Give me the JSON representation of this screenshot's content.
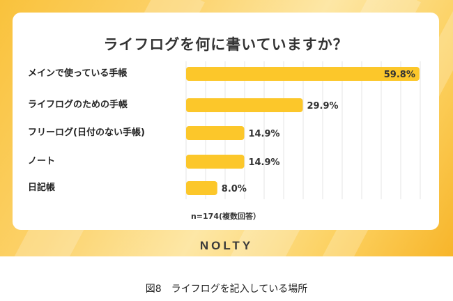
{
  "logo": "NOLTY",
  "caption": "図8　ライフログを記入している場所",
  "colors": {
    "bar": "#fcc72a",
    "label": "#333333"
  },
  "chart_data": {
    "type": "bar",
    "orientation": "horizontal",
    "title": "ライフログを何に書いていますか？",
    "categories": [
      "メインで使っている手帳",
      "ライフログのための手帳",
      "フリーログ(日付のない手帳)",
      "ノート",
      "日記帳"
    ],
    "values": [
      59.8,
      29.9,
      14.9,
      14.9,
      8.0
    ],
    "value_labels": [
      "59.8%",
      "29.9%",
      "14.9%",
      "14.9%",
      "8.0%"
    ],
    "xlim": [
      0,
      60
    ],
    "grid": true,
    "note": "n=174(複数回答）"
  }
}
